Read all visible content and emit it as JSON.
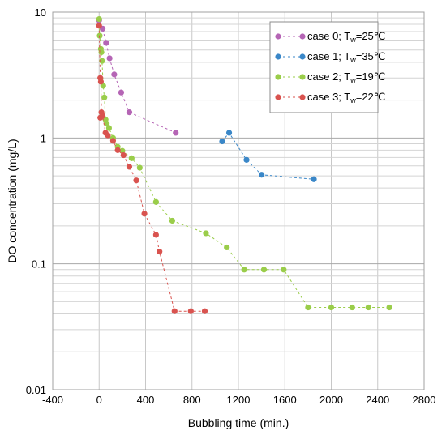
{
  "chart_data": {
    "type": "scatter",
    "title": "",
    "xlabel": "Bubbling time (min.)",
    "ylabel": "DO concentration (mg/L)",
    "xlim": [
      -400,
      2800
    ],
    "ylim": [
      0.01,
      10
    ],
    "yscale": "log",
    "x_ticks": [
      "-400",
      "0",
      "400",
      "800",
      "1200",
      "1600",
      "2000",
      "2400",
      "2800"
    ],
    "y_ticks": [
      "0.01",
      "0.1",
      "1",
      "10"
    ],
    "grid": true,
    "legend_position": "top-right",
    "series": [
      {
        "name": "case 0; Tw=25℃",
        "name_parts": [
          "case 0; T",
          "w",
          "=25℃"
        ],
        "color": "#b565b5",
        "points": [
          [
            0,
            8.6
          ],
          [
            30,
            7.4
          ],
          [
            60,
            5.7
          ],
          [
            90,
            4.3
          ],
          [
            130,
            3.2
          ],
          [
            190,
            2.3
          ],
          [
            260,
            1.6
          ],
          [
            660,
            1.1
          ]
        ]
      },
      {
        "name": "case 1; Tw=35℃",
        "name_parts": [
          "case 1; T",
          "w",
          "=35℃"
        ],
        "color": "#3a87c8",
        "points": [
          [
            1060,
            0.94
          ],
          [
            1120,
            1.1
          ],
          [
            1270,
            0.67
          ],
          [
            1400,
            0.51
          ],
          [
            1850,
            0.47
          ]
        ]
      },
      {
        "name": "case 2; Tw=19℃",
        "name_parts": [
          "case 2; T",
          "w",
          "=19℃"
        ],
        "color": "#9acd4a",
        "points": [
          [
            0,
            8.8
          ],
          [
            5,
            6.5
          ],
          [
            15,
            5.1
          ],
          [
            20,
            4.8
          ],
          [
            25,
            4.1
          ],
          [
            35,
            2.6
          ],
          [
            45,
            2.1
          ],
          [
            55,
            1.4
          ],
          [
            65,
            1.3
          ],
          [
            85,
            1.2
          ],
          [
            120,
            1.0
          ],
          [
            160,
            0.85
          ],
          [
            200,
            0.79
          ],
          [
            280,
            0.69
          ],
          [
            350,
            0.58
          ],
          [
            490,
            0.31
          ],
          [
            630,
            0.22
          ],
          [
            920,
            0.175
          ],
          [
            1100,
            0.135
          ],
          [
            1250,
            0.09
          ],
          [
            1420,
            0.09
          ],
          [
            1590,
            0.09
          ],
          [
            1800,
            0.045
          ],
          [
            2000,
            0.045
          ],
          [
            2180,
            0.045
          ],
          [
            2320,
            0.045
          ],
          [
            2500,
            0.045
          ]
        ]
      },
      {
        "name": "case 3; Tw=22℃",
        "name_parts": [
          "case 3; T",
          "w",
          "=22℃"
        ],
        "color": "#d9534f",
        "points": [
          [
            0,
            7.8
          ],
          [
            10,
            3.0
          ],
          [
            15,
            2.8
          ],
          [
            20,
            1.6
          ],
          [
            10,
            1.45
          ],
          [
            30,
            1.5
          ],
          [
            55,
            1.1
          ],
          [
            75,
            1.05
          ],
          [
            120,
            0.95
          ],
          [
            160,
            0.8
          ],
          [
            210,
            0.73
          ],
          [
            260,
            0.59
          ],
          [
            320,
            0.46
          ],
          [
            390,
            0.25
          ],
          [
            490,
            0.17
          ],
          [
            520,
            0.125
          ],
          [
            650,
            0.042
          ],
          [
            790,
            0.042
          ],
          [
            910,
            0.042
          ]
        ]
      }
    ]
  }
}
